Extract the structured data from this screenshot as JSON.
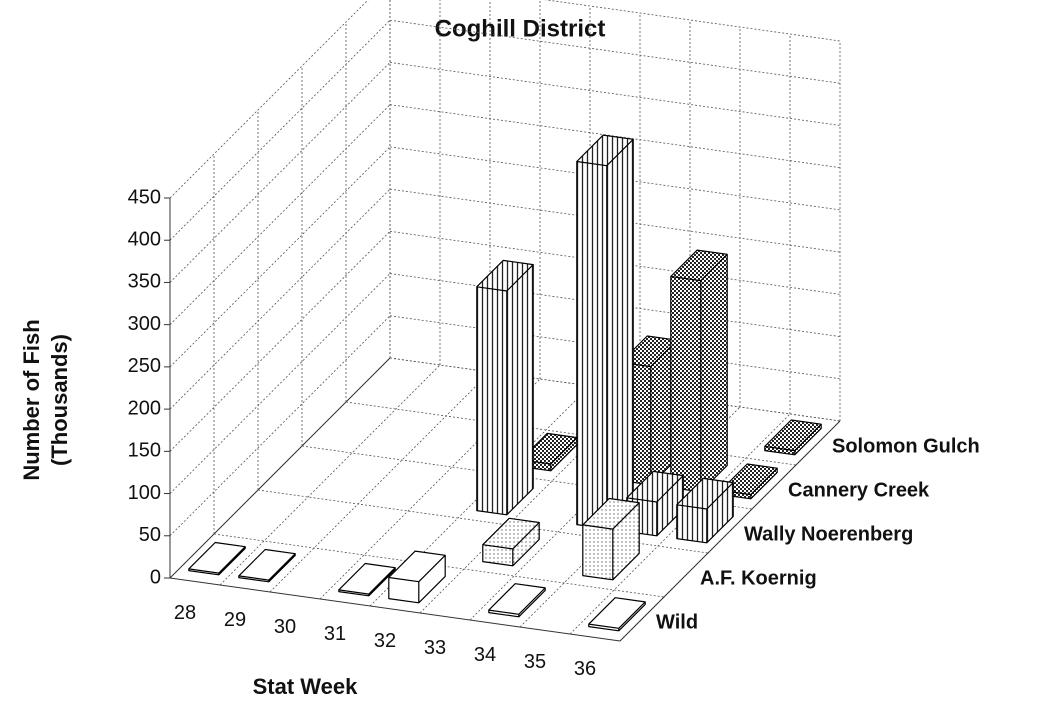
{
  "chart_data": {
    "type": "bar3d",
    "title": "Coghill District",
    "xlabel": "Stat Week",
    "ylabel": [
      "Number of Fish",
      "(Thousands)"
    ],
    "categories": [
      "28",
      "29",
      "30",
      "31",
      "32",
      "33",
      "34",
      "35",
      "36"
    ],
    "series": [
      {
        "name": "Wild",
        "color": "#ffffff",
        "pattern": "none",
        "values": [
          2,
          2,
          null,
          2,
          25,
          null,
          3,
          null,
          3
        ]
      },
      {
        "name": "A.F. Koernig",
        "color": "#ffffff",
        "pattern": "dots",
        "values": [
          null,
          null,
          null,
          null,
          null,
          20,
          null,
          60,
          null
        ]
      },
      {
        "name": "Wally Noerenberg",
        "color": "#ffffff",
        "pattern": "vertical-lines",
        "values": [
          null,
          null,
          null,
          null,
          265,
          null,
          430,
          40,
          40
        ]
      },
      {
        "name": "Cannery Creek",
        "color": "#444444",
        "pattern": "checker",
        "values": [
          null,
          null,
          null,
          null,
          8,
          null,
          140,
          250,
          5
        ]
      },
      {
        "name": "Solomon Gulch",
        "color": "#444444",
        "pattern": "checker",
        "values": [
          null,
          null,
          null,
          null,
          null,
          null,
          null,
          null,
          5
        ]
      }
    ],
    "ylim": [
      0,
      450
    ],
    "yticks": [
      0,
      50,
      100,
      150,
      200,
      250,
      300,
      350,
      400,
      450
    ],
    "grid": true
  }
}
